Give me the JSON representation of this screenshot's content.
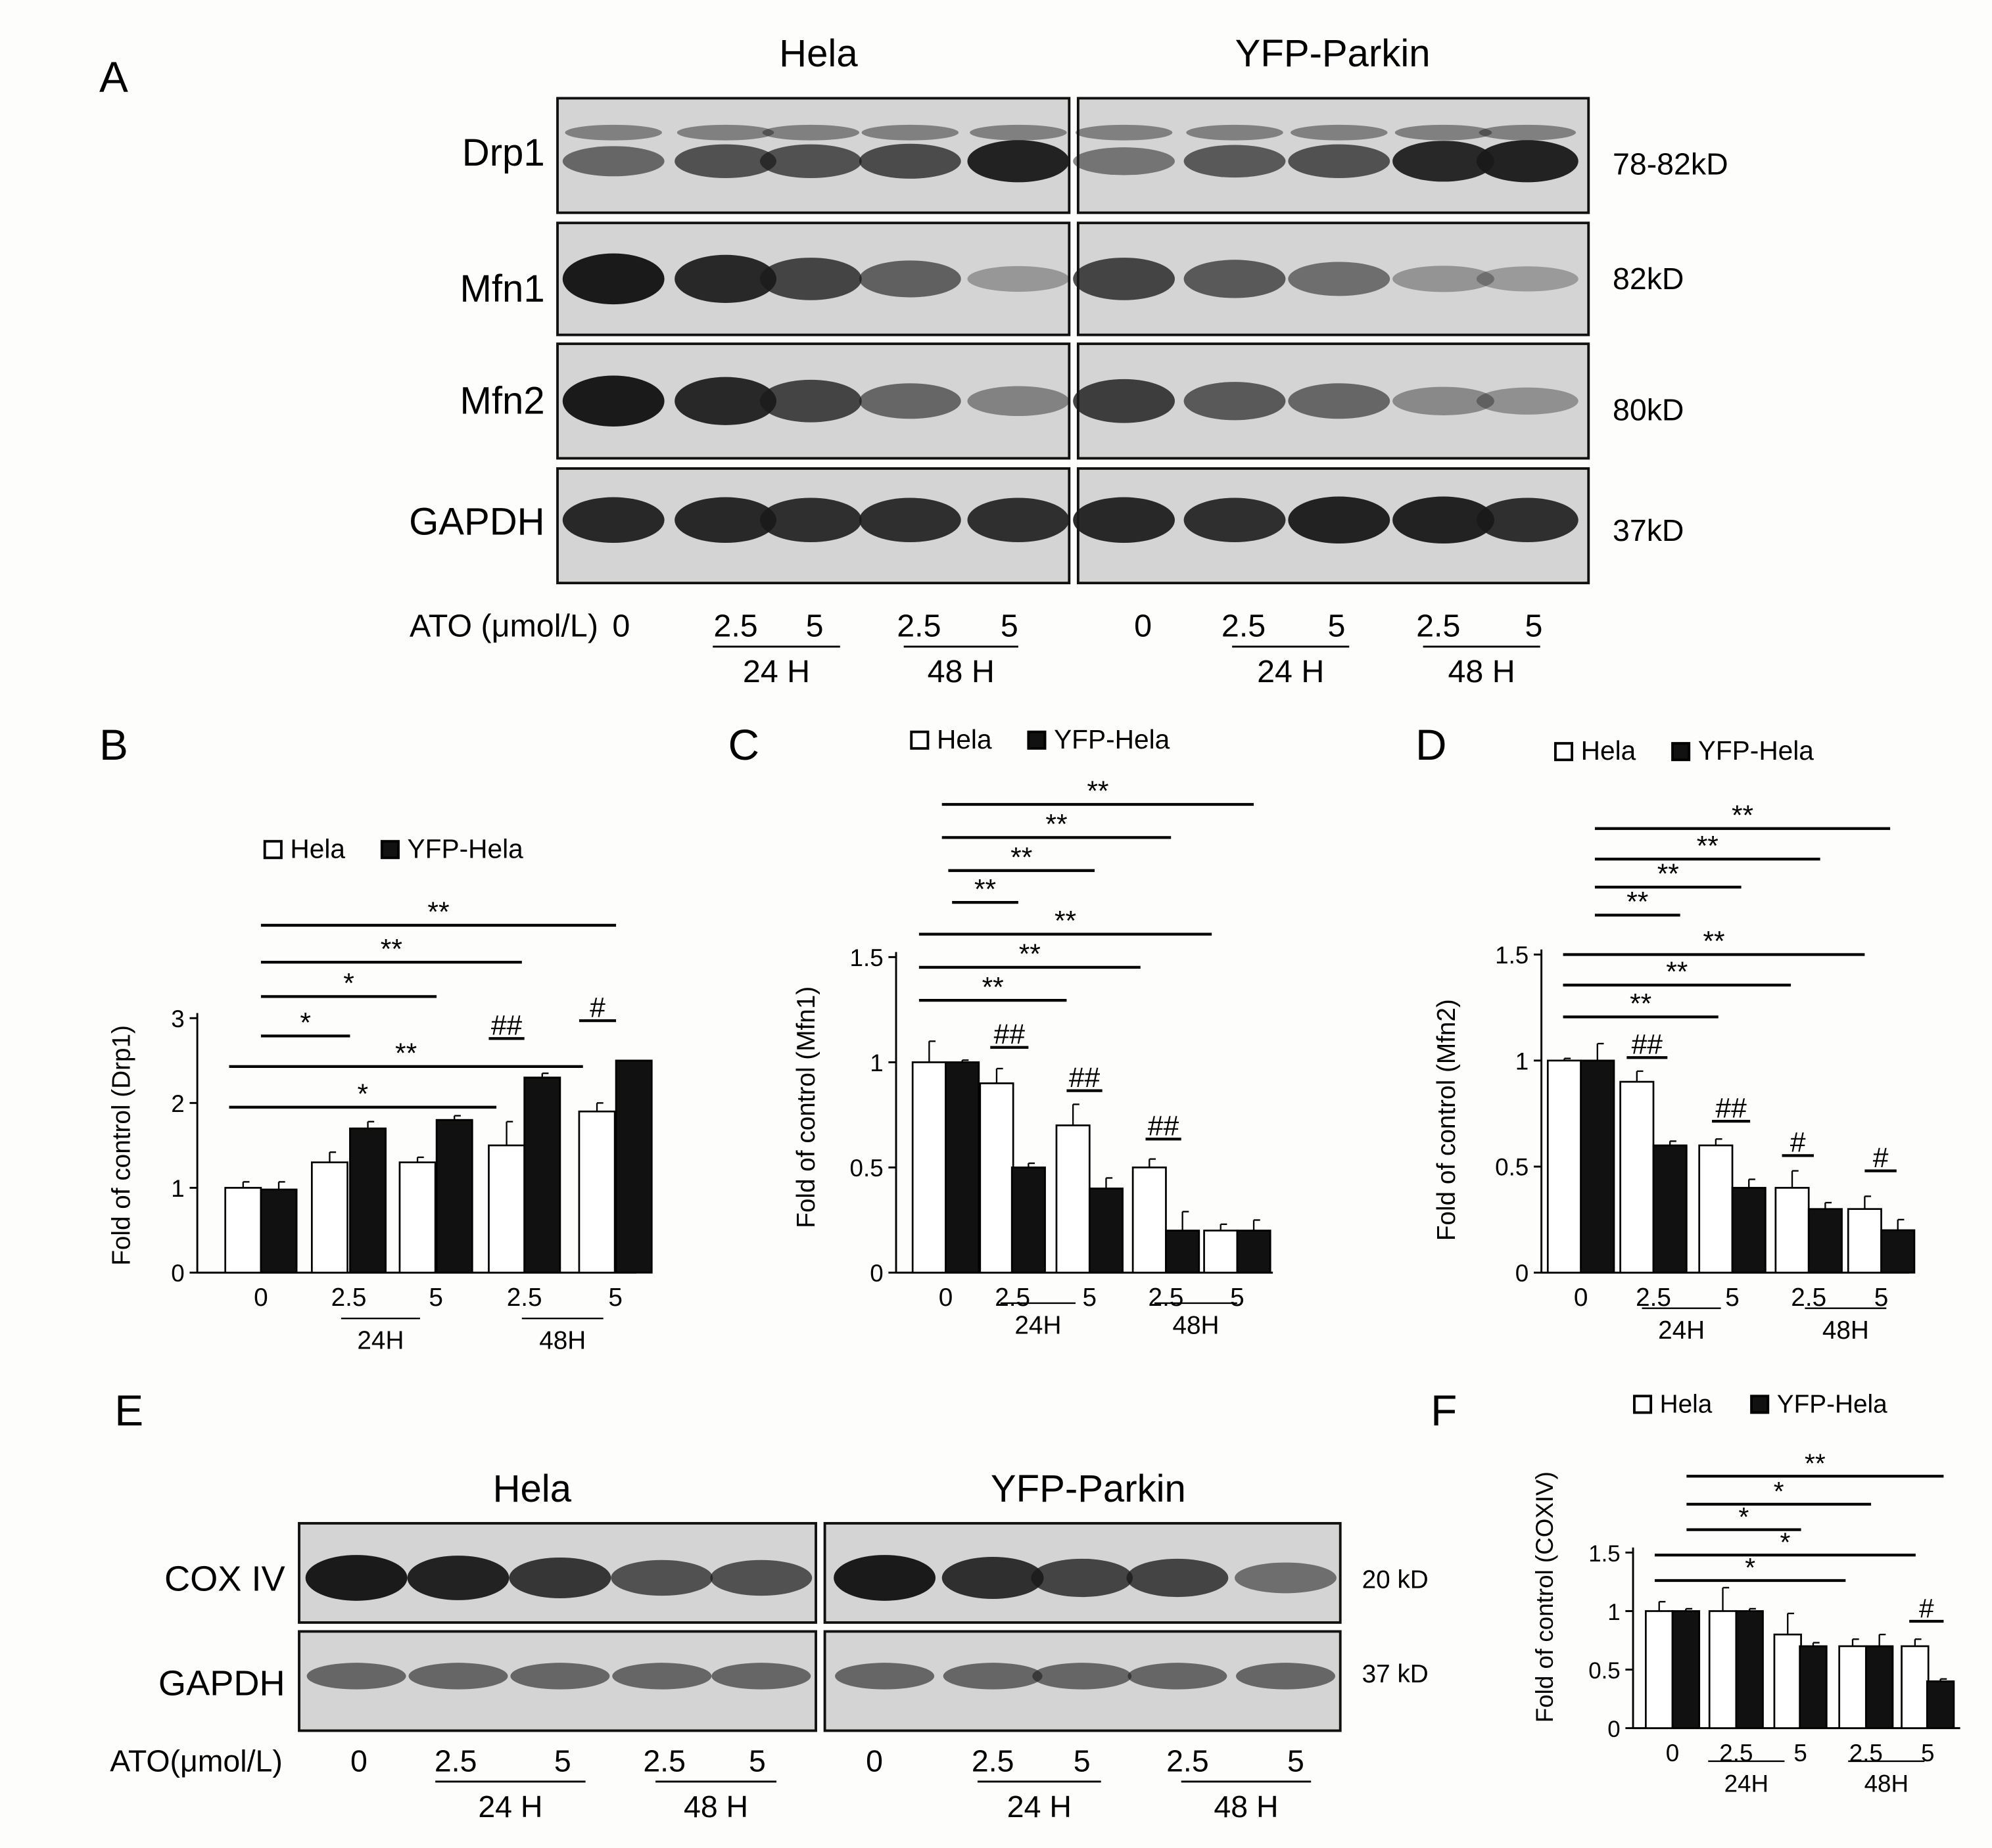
{
  "panel_letters": {
    "A": "A",
    "B": "B",
    "C": "C",
    "D": "D",
    "E": "E",
    "F": "F"
  },
  "panel_a": {
    "header_left": "Hela",
    "header_right": "YFP-Parkin",
    "proteins": [
      "Drp1",
      "Mfn1",
      "Mfn2",
      "GAPDH"
    ],
    "sizes": [
      "78-82kD",
      "82kD",
      "80kD",
      "37kD"
    ],
    "dose_label": "ATO (μmol/L)",
    "doses": [
      "0",
      "2.5",
      "5",
      "2.5",
      "5"
    ],
    "time_24": "24 H",
    "time_48": "48 H"
  },
  "panel_e": {
    "header_left": "Hela",
    "header_right": "YFP-Parkin",
    "proteins": [
      "COX IV",
      "GAPDH"
    ],
    "sizes": [
      "20 kD",
      "37 kD"
    ],
    "dose_label": "ATO(μmol/L)",
    "doses": [
      "0",
      "2.5",
      "5",
      "2.5",
      "5"
    ],
    "time_24": "24 H",
    "time_48": "48 H"
  },
  "legend": {
    "series1": "Hela",
    "series2": "YFP-Hela"
  },
  "colors": {
    "series1_fill": "#ffffff",
    "series2_fill": "#111111",
    "blot_bg": "#d4d4d4",
    "band": "#1a1a1a"
  },
  "chart_data": [
    {
      "panel": "B",
      "type": "bar",
      "ylabel": "Fold of control (Drp1)",
      "ylim": [
        0,
        3
      ],
      "yticks": [
        "0",
        "1",
        "2",
        "3"
      ],
      "categories": [
        "0",
        "2.5",
        "5",
        "2.5",
        "5"
      ],
      "group_labels": [
        "24H",
        "48H"
      ],
      "series": [
        {
          "name": "Hela",
          "values": [
            1.0,
            1.3,
            1.3,
            1.5,
            1.9
          ],
          "errors": [
            0.07,
            0.12,
            0.06,
            0.28,
            0.1
          ]
        },
        {
          "name": "YFP-Hela",
          "values": [
            0.98,
            1.7,
            1.8,
            2.3,
            2.5
          ],
          "errors": [
            0.09,
            0.08,
            0.05,
            0.05,
            0.0
          ]
        }
      ],
      "annotations": [
        "**",
        "**",
        "*",
        "*",
        "**",
        "*",
        "##",
        "#"
      ]
    },
    {
      "panel": "C",
      "type": "bar",
      "ylabel": "Fold of control (Mfn1)",
      "ylim": [
        0,
        1.5
      ],
      "yticks": [
        "0",
        "0.5",
        "1",
        "1.5"
      ],
      "categories": [
        "0",
        "2.5",
        "5",
        "2.5",
        "5"
      ],
      "group_labels": [
        "24H",
        "48H"
      ],
      "series": [
        {
          "name": "Hela",
          "values": [
            1.0,
            0.9,
            0.7,
            0.5,
            0.2
          ],
          "errors": [
            0.1,
            0.07,
            0.1,
            0.04,
            0.03
          ]
        },
        {
          "name": "YFP-Hela",
          "values": [
            1.0,
            0.5,
            0.4,
            0.2,
            0.2
          ],
          "errors": [
            0.01,
            0.02,
            0.05,
            0.09,
            0.05
          ]
        }
      ],
      "annotations": [
        "**",
        "**",
        "**",
        "**",
        "**",
        "**",
        "**",
        "##",
        "##",
        "##"
      ]
    },
    {
      "panel": "D",
      "type": "bar",
      "ylabel": "Fold of control (Mfn2)",
      "ylim": [
        0,
        1.5
      ],
      "yticks": [
        "0",
        "0.5",
        "1",
        "1.5"
      ],
      "categories": [
        "0",
        "2.5",
        "5",
        "2.5",
        "5"
      ],
      "group_labels": [
        "24H",
        "48H"
      ],
      "series": [
        {
          "name": "Hela",
          "values": [
            1.0,
            0.9,
            0.6,
            0.4,
            0.3
          ],
          "errors": [
            0.01,
            0.05,
            0.03,
            0.08,
            0.06
          ]
        },
        {
          "name": "YFP-Hela",
          "values": [
            1.0,
            0.6,
            0.4,
            0.3,
            0.2
          ],
          "errors": [
            0.08,
            0.02,
            0.04,
            0.03,
            0.05
          ]
        }
      ],
      "annotations": [
        "**",
        "**",
        "**",
        "**",
        "**",
        "**",
        "**",
        "##",
        "##",
        "#",
        "#"
      ]
    },
    {
      "panel": "F",
      "type": "bar",
      "ylabel": "Fold of control (COXIV)",
      "ylim": [
        0,
        1.5
      ],
      "yticks": [
        "0",
        "0.5",
        "1",
        "1.5"
      ],
      "categories": [
        "0",
        "2.5",
        "5",
        "2.5",
        "5"
      ],
      "group_labels": [
        "24H",
        "48H"
      ],
      "series": [
        {
          "name": "Hela",
          "values": [
            1.0,
            1.0,
            0.8,
            0.7,
            0.7
          ],
          "errors": [
            0.08,
            0.2,
            0.18,
            0.06,
            0.06
          ]
        },
        {
          "name": "YFP-Hela",
          "values": [
            1.0,
            1.0,
            0.7,
            0.7,
            0.4
          ],
          "errors": [
            0.02,
            0.02,
            0.03,
            0.1,
            0.02
          ]
        }
      ],
      "annotations": [
        "**",
        "*",
        "*",
        "*",
        "*",
        "#"
      ]
    }
  ]
}
